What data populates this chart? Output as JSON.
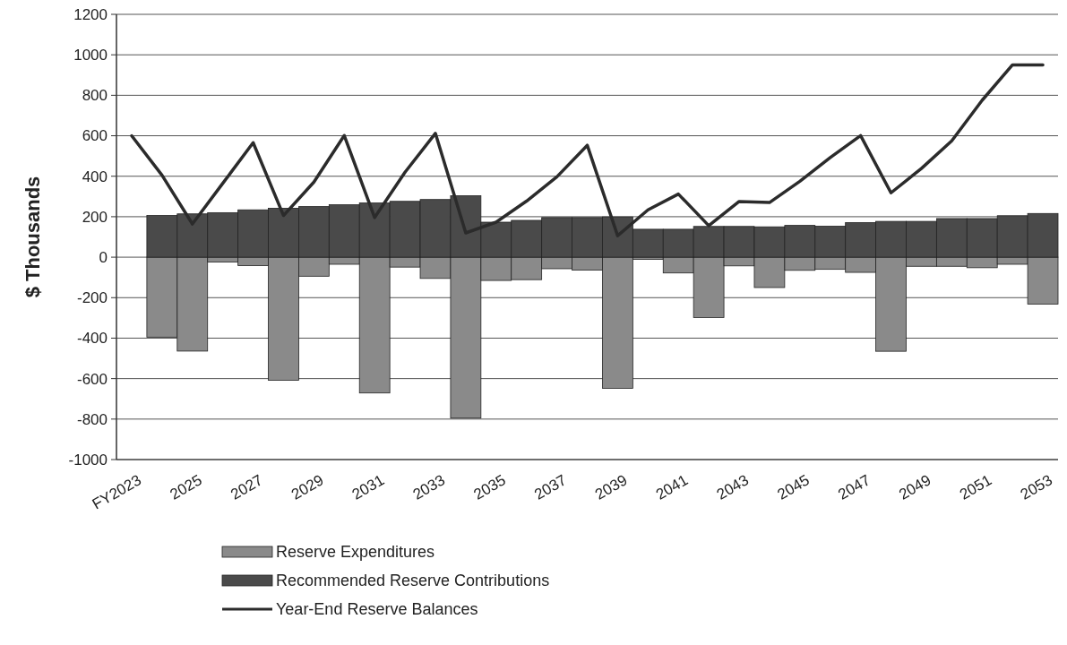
{
  "chart_data": {
    "type": "bar",
    "ylabel": "$ Thousands",
    "categories": [
      "FY2023",
      null,
      "2025",
      null,
      "2027",
      null,
      "2029",
      null,
      "2031",
      null,
      "2033",
      null,
      "2035",
      null,
      "2037",
      null,
      "2039",
      null,
      "2041",
      null,
      "2043",
      null,
      "2045",
      null,
      "2047",
      null,
      "2049",
      null,
      "2051",
      null,
      "2053"
    ],
    "series": [
      {
        "name": "Reserve Expenditures",
        "color": "#8a8a8a",
        "values": [
          null,
          -395,
          -464,
          -24,
          -42,
          -608,
          -94,
          -35,
          -671,
          -49,
          -105,
          -795,
          -115,
          -111,
          -57,
          -64,
          -648,
          -11,
          -78,
          -298,
          -43,
          -150,
          -65,
          -60,
          -75,
          -465,
          -45,
          -45,
          -52,
          -35,
          -232
        ]
      },
      {
        "name": "Recommended Reserve Contributions",
        "color": "#4a4a4a",
        "values": [
          null,
          206,
          214,
          220,
          234,
          242,
          250,
          259,
          268,
          276,
          285,
          304,
          173,
          182,
          196,
          196,
          199,
          138,
          138,
          152,
          152,
          150,
          157,
          153,
          171,
          177,
          177,
          191,
          191,
          205,
          216
        ]
      },
      {
        "name": "Year-End Reserve Balances",
        "type": "line",
        "color": "#2b2b2b",
        "values": [
          600,
          405,
          164,
          365,
          566,
          206,
          371,
          601,
          196,
          420,
          612,
          120,
          173,
          277,
          397,
          553,
          106,
          234,
          312,
          156,
          275,
          270,
          375,
          492,
          601,
          318,
          438,
          575,
          775,
          950,
          950
        ]
      }
    ],
    "stacked": true,
    "ylim": [
      -1000,
      1200
    ],
    "yticks": [
      -1000,
      -800,
      -600,
      -400,
      -200,
      0,
      200,
      400,
      600,
      800,
      1000,
      1200
    ],
    "grid": "y",
    "legend": "bottom left"
  }
}
